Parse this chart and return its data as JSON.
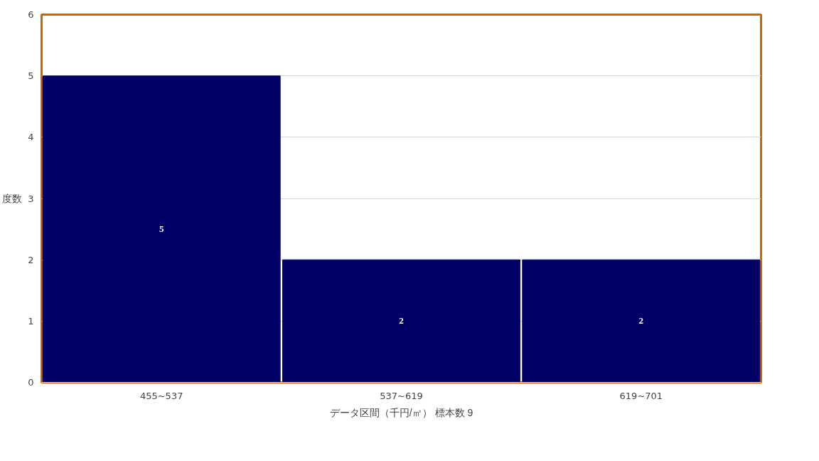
{
  "chart_data": {
    "type": "bar",
    "categories": [
      "455~537",
      "537~619",
      "619~701"
    ],
    "values": [
      5,
      2,
      2
    ],
    "color": "#000066",
    "xlabel": "データ区間（千円/㎡） 標本数 9",
    "ylabel": "度数",
    "ylim": [
      0,
      6
    ],
    "yticks": [
      0,
      1,
      2,
      3,
      4,
      5,
      6
    ],
    "grid": "y",
    "data_labels": true
  }
}
